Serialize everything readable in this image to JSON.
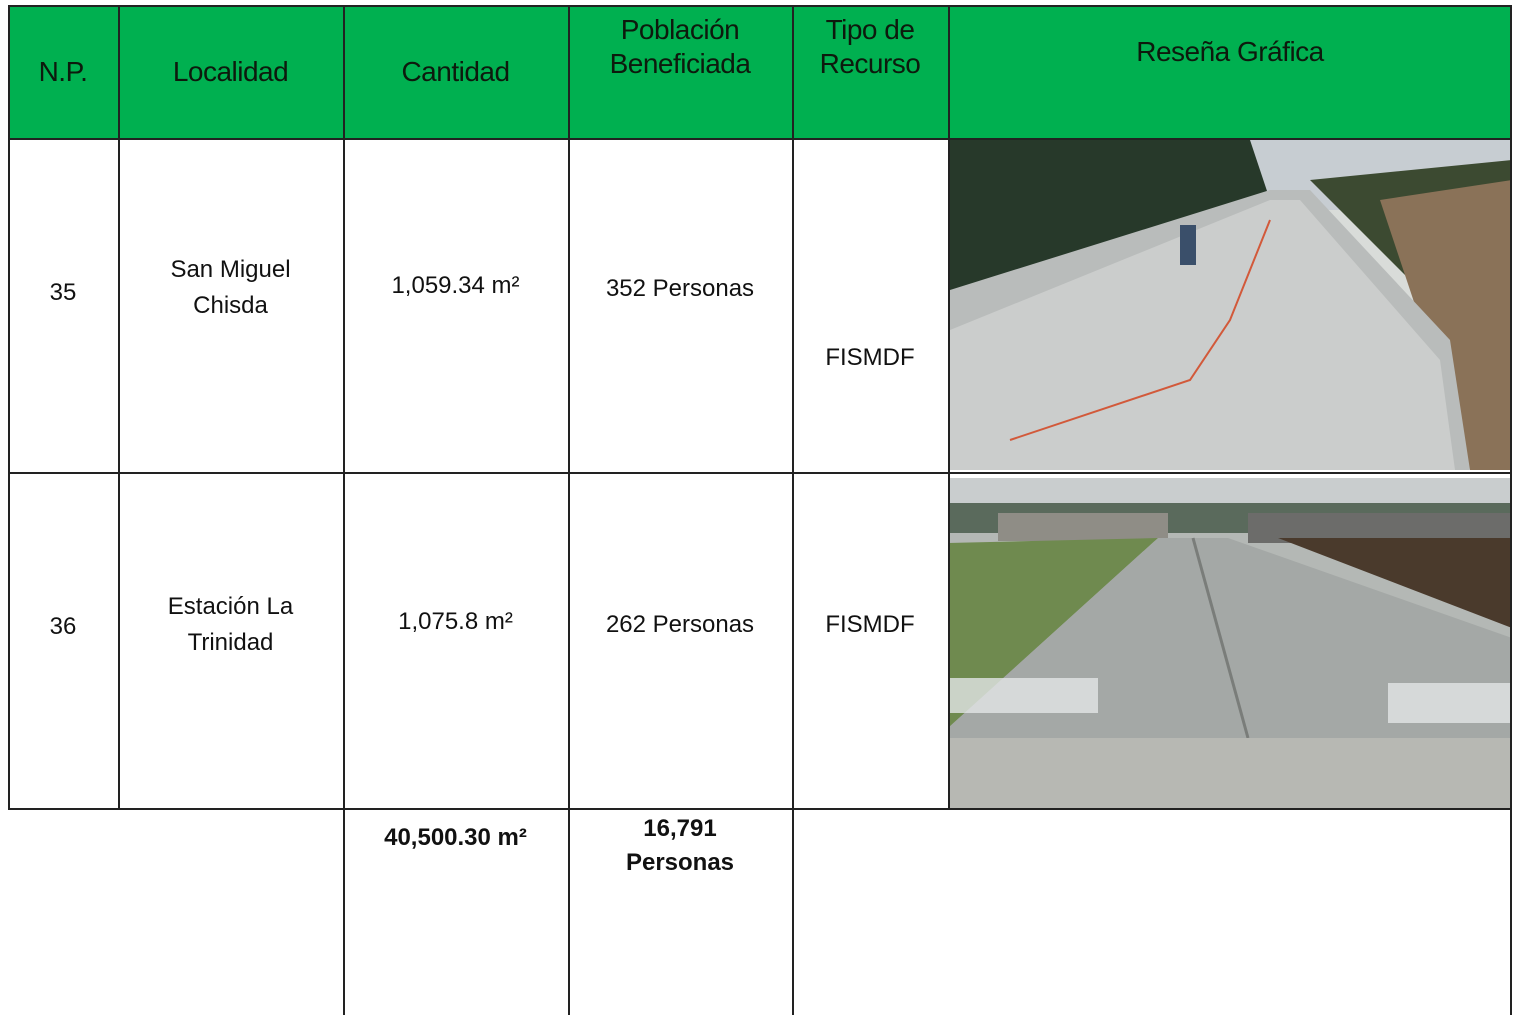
{
  "header": {
    "columns": [
      "N.P.",
      "Localidad",
      "Cantidad",
      "Población Beneficiada",
      "Tipo de Recurso",
      "Reseña Gráfica"
    ]
  },
  "rows": [
    {
      "np": "35",
      "localidad": "San Miguel Chisda",
      "cantidad": "1,059.34 m²",
      "poblacion": "352 Personas",
      "recurso": "FISMDF"
    },
    {
      "np": "36",
      "localidad": "Estación La Trinidad",
      "cantidad": "1,075.8 m²",
      "poblacion": "262 Personas",
      "recurso": "FISMDF"
    }
  ],
  "totals": {
    "cantidad": "40,500.30 m²",
    "poblacion": "16,791 Personas"
  }
}
